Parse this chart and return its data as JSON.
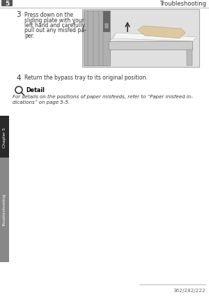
{
  "bg_color": "#ffffff",
  "header_text": "Troubleshooting",
  "header_chapter": "5",
  "step3_num": "3",
  "step3_text_lines": [
    "Press down on the",
    "sliding plate with your",
    "left hand and carefully",
    "pull out any misfed pa-",
    "per."
  ],
  "step4_num": "4",
  "step4_text": "Return the bypass tray to its original position.",
  "detail_title": "Detail",
  "detail_text_lines": [
    "For details on the positions of paper misfeeds, refer to “Paper misfeed in-",
    "dications” on page 5-5."
  ],
  "footer_text": "362/282/222",
  "sidebar_text": "Troubleshooting",
  "sidebar_chapter": "Chapter 5",
  "chapter_sidebar_bg": "#2a2a2a",
  "trouble_sidebar_bg": "#888888",
  "sidebar_text_color": "#ffffff",
  "img_border_color": "#aaaaaa",
  "img_bg": "#e0e0e0",
  "machine_color": "#b0b0b0",
  "machine_dark": "#777777",
  "paper_color": "#f5f5f5"
}
